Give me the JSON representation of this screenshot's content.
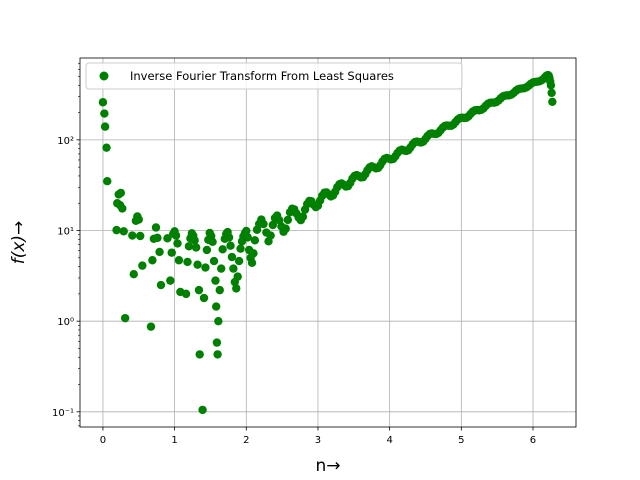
{
  "chart_data": {
    "type": "scatter",
    "title": "",
    "xlabel": "n→",
    "ylabel": "f(x)→",
    "xlim": [
      -0.32,
      6.6
    ],
    "ylim": [
      0.068,
      800
    ],
    "yscale": "log",
    "grid": true,
    "legend_position": "top-left",
    "x_ticks": [
      0,
      1,
      2,
      3,
      4,
      5,
      6
    ],
    "x_tick_labels": [
      "0",
      "1",
      "2",
      "3",
      "4",
      "5",
      "6"
    ],
    "y_ticks": [
      0.1,
      1,
      10,
      100
    ],
    "y_tick_labels": [
      "10⁻¹",
      "10⁰",
      "10¹",
      "10²"
    ],
    "series": [
      {
        "name": "Inverse Fourier Transform From Least Squares",
        "color": "#008000",
        "points": [
          [
            0.0,
            260
          ],
          [
            0.02,
            195
          ],
          [
            0.03,
            140
          ],
          [
            0.05,
            82
          ],
          [
            0.06,
            35
          ],
          [
            0.19,
            10.1
          ],
          [
            0.2,
            20
          ],
          [
            0.22,
            25
          ],
          [
            0.24,
            19
          ],
          [
            0.25,
            26
          ],
          [
            0.27,
            17.5
          ],
          [
            0.29,
            9.8
          ],
          [
            0.31,
            1.08
          ],
          [
            0.41,
            8.8
          ],
          [
            0.43,
            3.3
          ],
          [
            0.46,
            12.8
          ],
          [
            0.48,
            14.3
          ],
          [
            0.5,
            13.2
          ],
          [
            0.52,
            8.7
          ],
          [
            0.55,
            4.1
          ],
          [
            0.67,
            0.87
          ],
          [
            0.69,
            4.7
          ],
          [
            0.71,
            8.1
          ],
          [
            0.74,
            10.8
          ],
          [
            0.76,
            8.3
          ],
          [
            0.79,
            5.8
          ],
          [
            0.81,
            2.5
          ],
          [
            0.9,
            8.2
          ],
          [
            0.94,
            2.8
          ],
          [
            0.96,
            5.7
          ],
          [
            0.98,
            9.2
          ],
          [
            1.0,
            9.8
          ],
          [
            1.02,
            8.8
          ],
          [
            1.04,
            7.2
          ],
          [
            1.06,
            4.7
          ],
          [
            1.08,
            2.1
          ],
          [
            1.16,
            2.0
          ],
          [
            1.18,
            4.5
          ],
          [
            1.2,
            6.7
          ],
          [
            1.22,
            8.2
          ],
          [
            1.24,
            9.3
          ],
          [
            1.26,
            8.8
          ],
          [
            1.28,
            7.8
          ],
          [
            1.3,
            6.5
          ],
          [
            1.32,
            4.2
          ],
          [
            1.34,
            2.2
          ],
          [
            1.35,
            0.43
          ],
          [
            1.39,
            0.105
          ],
          [
            1.41,
            1.8
          ],
          [
            1.43,
            3.9
          ],
          [
            1.45,
            6.1
          ],
          [
            1.47,
            7.9
          ],
          [
            1.49,
            9.4
          ],
          [
            1.51,
            8.7
          ],
          [
            1.53,
            7.5
          ],
          [
            1.55,
            4.6
          ],
          [
            1.57,
            2.8
          ],
          [
            1.58,
            1.45
          ],
          [
            1.59,
            0.58
          ],
          [
            1.6,
            0.43
          ],
          [
            1.61,
            1.0
          ],
          [
            1.63,
            2.2
          ],
          [
            1.65,
            3.8
          ],
          [
            1.67,
            6.2
          ],
          [
            1.7,
            8.1
          ],
          [
            1.72,
            9.2
          ],
          [
            1.74,
            9.6
          ],
          [
            1.76,
            8.4
          ],
          [
            1.78,
            6.8
          ],
          [
            1.8,
            5.1
          ],
          [
            1.82,
            3.8
          ],
          [
            1.84,
            2.7
          ],
          [
            1.86,
            2.3
          ],
          [
            1.88,
            3.1
          ],
          [
            1.9,
            4.6
          ],
          [
            1.92,
            6.3
          ],
          [
            1.94,
            7.6
          ],
          [
            1.96,
            8.6
          ],
          [
            1.98,
            9.3
          ],
          [
            2.0,
            9.9
          ],
          [
            2.02,
            8.4
          ],
          [
            2.04,
            6.1
          ],
          [
            2.06,
            5.0
          ],
          [
            2.08,
            4.4
          ],
          [
            2.1,
            5.6
          ],
          [
            2.12,
            7.8
          ],
          [
            2.15,
            10.2
          ],
          [
            2.18,
            11.8
          ],
          [
            2.21,
            13.2
          ],
          [
            2.24,
            11.8
          ],
          [
            2.28,
            9.5
          ],
          [
            2.31,
            7.6
          ],
          [
            2.34,
            8.8
          ],
          [
            2.37,
            11.5
          ],
          [
            2.4,
            13.7
          ],
          [
            2.43,
            14.6
          ],
          [
            2.46,
            13.0
          ],
          [
            2.49,
            11.1
          ],
          [
            2.52,
            9.7
          ],
          [
            2.55,
            10.5
          ],
          [
            2.58,
            13.1
          ],
          [
            2.61,
            15.9
          ],
          [
            2.64,
            17.4
          ],
          [
            2.67,
            17.1
          ],
          [
            2.7,
            15.4
          ],
          [
            2.73,
            13.9
          ],
          [
            2.76,
            13.0
          ],
          [
            2.79,
            14.2
          ],
          [
            2.82,
            17.0
          ],
          [
            2.85,
            19.6
          ],
          [
            2.88,
            21.2
          ],
          [
            2.91,
            21.0
          ],
          [
            2.94,
            19.2
          ],
          [
            2.97,
            18.1
          ],
          [
            3.0,
            18.8
          ],
          [
            3.03,
            21.4
          ],
          [
            3.06,
            24.2
          ],
          [
            3.09,
            26.1
          ],
          [
            3.12,
            26.3
          ],
          [
            3.15,
            25.0
          ],
          [
            3.18,
            23.8
          ],
          [
            3.21,
            24.4
          ],
          [
            3.24,
            26.8
          ],
          [
            3.27,
            30.1
          ],
          [
            3.3,
            32.4
          ],
          [
            3.33,
            33.0
          ],
          [
            3.36,
            31.9
          ],
          [
            3.39,
            30.6
          ],
          [
            3.42,
            30.9
          ],
          [
            3.45,
            33.5
          ],
          [
            3.48,
            37.3
          ],
          [
            3.51,
            40.0
          ],
          [
            3.54,
            40.9
          ],
          [
            3.57,
            39.9
          ],
          [
            3.6,
            38.5
          ],
          [
            3.63,
            38.8
          ],
          [
            3.66,
            41.8
          ],
          [
            3.69,
            46.2
          ],
          [
            3.72,
            49.6
          ],
          [
            3.75,
            51.0
          ],
          [
            3.78,
            49.8
          ],
          [
            3.81,
            48.5
          ],
          [
            3.84,
            49.0
          ],
          [
            3.87,
            52.6
          ],
          [
            3.9,
            57.7
          ],
          [
            3.93,
            61.7
          ],
          [
            3.96,
            63.1
          ],
          [
            3.99,
            62.0
          ],
          [
            4.02,
            60.8
          ],
          [
            4.05,
            61.6
          ],
          [
            4.08,
            66.0
          ],
          [
            4.11,
            71.8
          ],
          [
            4.14,
            76.2
          ],
          [
            4.17,
            77.8
          ],
          [
            4.2,
            76.5
          ],
          [
            4.23,
            75.4
          ],
          [
            4.26,
            76.9
          ],
          [
            4.29,
            82.3
          ],
          [
            4.32,
            89.2
          ],
          [
            4.35,
            94.3
          ],
          [
            4.38,
            95.8
          ],
          [
            4.41,
            94.4
          ],
          [
            4.44,
            93.6
          ],
          [
            4.47,
            95.9
          ],
          [
            4.5,
            102.6
          ],
          [
            4.53,
            110.5
          ],
          [
            4.56,
            116.1
          ],
          [
            4.59,
            117.6
          ],
          [
            4.62,
            116.2
          ],
          [
            4.65,
            115.8
          ],
          [
            4.68,
            119.2
          ],
          [
            4.71,
            127.4
          ],
          [
            4.74,
            136.2
          ],
          [
            4.77,
            142.4
          ],
          [
            4.8,
            144.0
          ],
          [
            4.83,
            142.8
          ],
          [
            4.86,
            143.0
          ],
          [
            4.89,
            147.7
          ],
          [
            4.92,
            157.5
          ],
          [
            4.95,
            167.5
          ],
          [
            4.98,
            174.0
          ],
          [
            5.01,
            175.5
          ],
          [
            5.04,
            174.3
          ],
          [
            5.07,
            175.5
          ],
          [
            5.1,
            182.0
          ],
          [
            5.13,
            193.8
          ],
          [
            5.16,
            205.0
          ],
          [
            5.19,
            211.6
          ],
          [
            5.22,
            213.0
          ],
          [
            5.25,
            212.2
          ],
          [
            5.28,
            214.8
          ],
          [
            5.31,
            223.1
          ],
          [
            5.34,
            237.0
          ],
          [
            5.37,
            249.5
          ],
          [
            5.4,
            256.1
          ],
          [
            5.43,
            257.7
          ],
          [
            5.46,
            257.4
          ],
          [
            5.49,
            261.6
          ],
          [
            5.52,
            272.2
          ],
          [
            5.55,
            288.0
          ],
          [
            5.58,
            301.4
          ],
          [
            5.61,
            307.5
          ],
          [
            5.64,
            309.6
          ],
          [
            5.67,
            310.0
          ],
          [
            5.7,
            316.4
          ],
          [
            5.73,
            329.4
          ],
          [
            5.76,
            347.1
          ],
          [
            5.79,
            360.8
          ],
          [
            5.82,
            367.0
          ],
          [
            5.85,
            369.6
          ],
          [
            5.88,
            371.6
          ],
          [
            5.91,
            380.3
          ],
          [
            5.94,
            396.1
          ],
          [
            5.97,
            415.6
          ],
          [
            6.0,
            429.2
          ],
          [
            6.03,
            435.4
          ],
          [
            6.06,
            438.5
          ],
          [
            6.09,
            442.9
          ],
          [
            6.12,
            454.0
          ],
          [
            6.15,
            473.0
          ],
          [
            6.17,
            493.2
          ],
          [
            6.19,
            511.4
          ],
          [
            6.21,
            518.4
          ],
          [
            6.22,
            510.0
          ],
          [
            6.23,
            480.0
          ],
          [
            6.24,
            440.0
          ],
          [
            6.25,
            400.0
          ],
          [
            6.26,
            330.0
          ],
          [
            6.27,
            263.0
          ]
        ]
      }
    ]
  }
}
